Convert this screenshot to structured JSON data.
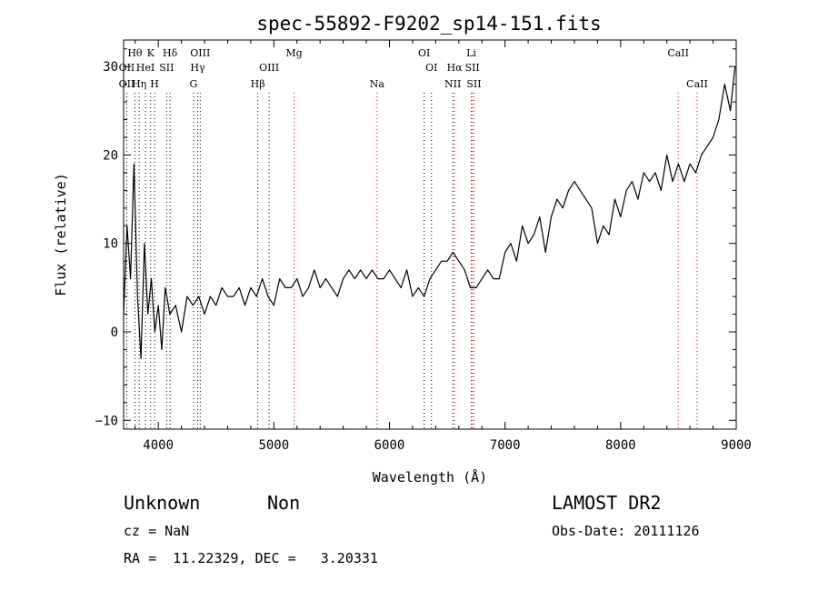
{
  "chart_data": {
    "type": "line",
    "title": "spec-55892-F9202_sp14-151.fits",
    "xlabel": "Wavelength (Å)",
    "ylabel": "Flux (relative)",
    "xlim": [
      3700,
      9000
    ],
    "ylim": [
      -11,
      33
    ],
    "xticks": [
      4000,
      5000,
      6000,
      7000,
      8000,
      9000
    ],
    "yticks": [
      -10,
      0,
      10,
      20,
      30
    ],
    "grid": false,
    "series": [
      {
        "x": [
          3700,
          3730,
          3760,
          3790,
          3820,
          3850,
          3880,
          3910,
          3940,
          3970,
          4000,
          4030,
          4060,
          4100,
          4150,
          4200,
          4250,
          4300,
          4350,
          4400,
          4450,
          4500,
          4550,
          4600,
          4650,
          4700,
          4750,
          4800,
          4850,
          4900,
          4950,
          5000,
          5050,
          5100,
          5150,
          5200,
          5250,
          5300,
          5350,
          5400,
          5450,
          5500,
          5550,
          5600,
          5650,
          5700,
          5750,
          5800,
          5850,
          5900,
          5950,
          6000,
          6050,
          6100,
          6150,
          6200,
          6250,
          6300,
          6350,
          6400,
          6450,
          6500,
          6550,
          6600,
          6650,
          6700,
          6750,
          6800,
          6850,
          6900,
          6950,
          7000,
          7050,
          7100,
          7150,
          7200,
          7250,
          7300,
          7350,
          7400,
          7450,
          7500,
          7550,
          7600,
          7650,
          7700,
          7750,
          7800,
          7850,
          7900,
          7950,
          8000,
          8050,
          8100,
          8150,
          8200,
          8250,
          8300,
          8350,
          8400,
          8450,
          8500,
          8550,
          8600,
          8650,
          8700,
          8750,
          8800,
          8850,
          8900,
          8950,
          8990
        ],
        "y": [
          2,
          12,
          6,
          19,
          4,
          -3,
          10,
          2,
          6,
          0,
          3,
          -2,
          5,
          2,
          3,
          0,
          4,
          3,
          4,
          2,
          4,
          3,
          5,
          4,
          4,
          5,
          3,
          5,
          4,
          6,
          4,
          3,
          6,
          5,
          5,
          6,
          4,
          5,
          7,
          5,
          6,
          5,
          4,
          6,
          7,
          6,
          7,
          6,
          7,
          6,
          6,
          7,
          6,
          5,
          7,
          4,
          5,
          4,
          6,
          7,
          8,
          8,
          9,
          8,
          7,
          5,
          5,
          6,
          7,
          6,
          6,
          9,
          10,
          8,
          12,
          10,
          11,
          13,
          9,
          13,
          15,
          14,
          16,
          17,
          16,
          15,
          14,
          10,
          12,
          11,
          15,
          13,
          16,
          17,
          15,
          18,
          17,
          18,
          16,
          20,
          17,
          19,
          17,
          19,
          18,
          20,
          21,
          22,
          24,
          28,
          25,
          30
        ]
      }
    ],
    "spectral_lines": [
      {
        "label": "Hθ",
        "x": 3798,
        "row": 0
      },
      {
        "label": "K",
        "x": 3934,
        "row": 0
      },
      {
        "label": "Hδ",
        "x": 4102,
        "row": 0
      },
      {
        "label": "OIII",
        "x": 4363,
        "row": 0
      },
      {
        "label": "Mg",
        "x": 5175,
        "row": 0
      },
      {
        "label": "OI",
        "x": 6300,
        "row": 0
      },
      {
        "label": "Li",
        "x": 6708,
        "row": 0
      },
      {
        "label": "CaII",
        "x": 8498,
        "row": 0
      },
      {
        "label": "OII",
        "x": 3727,
        "row": 1
      },
      {
        "label": "HeI",
        "x": 3889,
        "row": 1
      },
      {
        "label": "SII",
        "x": 4072,
        "row": 1
      },
      {
        "label": "Hγ",
        "x": 4341,
        "row": 1
      },
      {
        "label": "OIII",
        "x": 4959,
        "row": 1
      },
      {
        "label": "OI",
        "x": 6364,
        "row": 1
      },
      {
        "label": "Hα",
        "x": 6563,
        "row": 1
      },
      {
        "label": "SII",
        "x": 6717,
        "row": 1
      },
      {
        "label": "OII",
        "x": 3727,
        "row": 2
      },
      {
        "label": "Hη",
        "x": 3835,
        "row": 2
      },
      {
        "label": "H",
        "x": 3968,
        "row": 2
      },
      {
        "label": "G",
        "x": 4305,
        "row": 2
      },
      {
        "label": "Hβ",
        "x": 4861,
        "row": 2
      },
      {
        "label": "Na",
        "x": 5893,
        "row": 2
      },
      {
        "label": "NII",
        "x": 6548,
        "row": 2
      },
      {
        "label": "SII",
        "x": 6731,
        "row": 2
      },
      {
        "label": "CaII",
        "x": 8662,
        "row": 2
      }
    ],
    "dotted_lines": [
      {
        "x": 3727,
        "color": "#000000"
      },
      {
        "x": 3798,
        "color": "#000000"
      },
      {
        "x": 3835,
        "color": "#000000"
      },
      {
        "x": 3889,
        "color": "#000000"
      },
      {
        "x": 3934,
        "color": "#000000"
      },
      {
        "x": 3968,
        "color": "#000000"
      },
      {
        "x": 4072,
        "color": "#000000"
      },
      {
        "x": 4102,
        "color": "#000000"
      },
      {
        "x": 4305,
        "color": "#000000"
      },
      {
        "x": 4341,
        "color": "#000000"
      },
      {
        "x": 4363,
        "color": "#000000"
      },
      {
        "x": 4861,
        "color": "#000000"
      },
      {
        "x": 4959,
        "color": "#000000"
      },
      {
        "x": 5175,
        "color": "#cc0000"
      },
      {
        "x": 5893,
        "color": "#cc0000"
      },
      {
        "x": 6300,
        "color": "#000000"
      },
      {
        "x": 6364,
        "color": "#000000"
      },
      {
        "x": 6548,
        "color": "#000000"
      },
      {
        "x": 6563,
        "color": "#cc0000"
      },
      {
        "x": 6708,
        "color": "#cc0000"
      },
      {
        "x": 6717,
        "color": "#cc0000"
      },
      {
        "x": 6731,
        "color": "#cc0000"
      },
      {
        "x": 8498,
        "color": "#cc0000"
      },
      {
        "x": 8662,
        "color": "#cc0000"
      }
    ]
  },
  "info": {
    "class": "Unknown",
    "subclass": "Non",
    "survey": "LAMOST DR2",
    "cz": "cz = NaN",
    "obs_date": "Obs-Date: 20111126",
    "radec": "RA =  11.22329, DEC =   3.20331"
  }
}
